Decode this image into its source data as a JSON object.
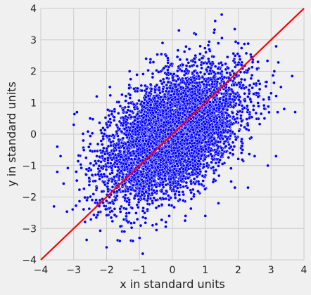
{
  "chart_data": {
    "type": "scatter",
    "title": "",
    "xlabel": "x in standard units",
    "ylabel": "y in standard units",
    "xlim": [
      -4,
      4
    ],
    "ylim": [
      -4,
      4
    ],
    "xticks": [
      "−4",
      "−3",
      "−2",
      "−1",
      "0",
      "1",
      "2",
      "3",
      "4"
    ],
    "yticks": [
      "−4",
      "−3",
      "−2",
      "−1",
      "0",
      "1",
      "2",
      "3",
      "4"
    ],
    "grid": true,
    "series": [
      {
        "kind": "points",
        "approx_count": 10000,
        "approx_correlation": 0.5,
        "distribution": "standard bivariate normal",
        "color": "#0000ff",
        "edge_color": "#ffffff"
      },
      {
        "kind": "line",
        "x": [
          -4,
          4
        ],
        "y": [
          -4,
          4
        ],
        "color": "#ff0000"
      }
    ],
    "sample_points": [
      [
        -3.6,
        -2.3
      ],
      [
        -3.5,
        -1.2
      ],
      [
        -3.5,
        -0.4
      ],
      [
        -3.4,
        -0.7
      ],
      [
        -3.0,
        0.3
      ],
      [
        -2.9,
        0.7
      ],
      [
        -2.6,
        -2.1
      ],
      [
        -2.5,
        0.5
      ],
      [
        -2.3,
        1.2
      ],
      [
        -2.2,
        -2.1
      ],
      [
        -2.0,
        -3.6
      ],
      [
        -1.9,
        1.5
      ],
      [
        -1.6,
        -3.4
      ],
      [
        -1.3,
        2.0
      ],
      [
        -1.2,
        -3.4
      ],
      [
        -1.0,
        -3.3
      ],
      [
        -0.9,
        -3.8
      ],
      [
        -0.8,
        2.4
      ],
      [
        -0.6,
        -2.9
      ],
      [
        -0.3,
        2.9
      ],
      [
        -0.2,
        -2.8
      ],
      [
        0.2,
        3.3
      ],
      [
        0.4,
        -2.6
      ],
      [
        0.7,
        2.5
      ],
      [
        1.0,
        -2.6
      ],
      [
        1.3,
        3.6
      ],
      [
        1.4,
        -2.2
      ],
      [
        1.7,
        2.1
      ],
      [
        1.9,
        -1.7
      ],
      [
        2.1,
        2.2
      ],
      [
        2.3,
        -1.7
      ],
      [
        2.6,
        2.3
      ],
      [
        2.9,
        -1.0
      ],
      [
        3.0,
        1.3
      ],
      [
        3.1,
        2.0
      ],
      [
        3.3,
        1.5
      ],
      [
        3.4,
        0.8
      ],
      [
        3.2,
        0.7
      ],
      [
        2.8,
        0.5
      ],
      [
        2.5,
        -0.7
      ]
    ]
  }
}
